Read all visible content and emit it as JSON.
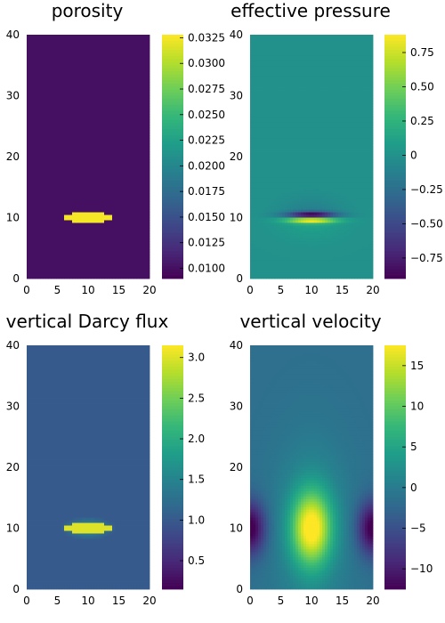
{
  "colors": {
    "viridis": [
      "#440154",
      "#482878",
      "#3e4989",
      "#31688e",
      "#26828e",
      "#1f9e89",
      "#35b779",
      "#6ece58",
      "#b5de2b",
      "#fde725"
    ]
  },
  "chart_data": [
    {
      "type": "heatmap",
      "title": "porosity",
      "xlim": [
        0,
        20
      ],
      "ylim": [
        0,
        40
      ],
      "xticks": [
        "0",
        "5",
        "10",
        "15",
        "20"
      ],
      "yticks": [
        "0",
        "10",
        "20",
        "30",
        "40"
      ],
      "clim": [
        0.009,
        0.0328
      ],
      "cbticks": [
        "0.0100",
        "0.0125",
        "0.0150",
        "0.0175",
        "0.0200",
        "0.0225",
        "0.0250",
        "0.0275",
        "0.0300",
        "0.0325"
      ],
      "field": {
        "background": 0.01,
        "blob": {
          "cx": 10,
          "cy": 10,
          "rx": 4.2,
          "ry": 0.8,
          "value": 0.0325
        }
      }
    },
    {
      "type": "heatmap",
      "title": "effective pressure",
      "xlim": [
        0,
        20
      ],
      "ylim": [
        0,
        40
      ],
      "xticks": [
        "0",
        "5",
        "10",
        "15",
        "20"
      ],
      "yticks": [
        "0",
        "10",
        "20",
        "30",
        "40"
      ],
      "clim": [
        -0.9,
        0.88
      ],
      "cbticks": [
        "0.75",
        "0.50",
        "0.25",
        "0",
        "−0.25",
        "−0.50",
        "−0.75"
      ],
      "field": {
        "background": 0.0,
        "dipole": {
          "cx": 10,
          "cy": 10,
          "min": -0.85,
          "max": 0.85
        }
      }
    },
    {
      "type": "heatmap",
      "title": "vertical Darcy flux",
      "xlim": [
        0,
        20
      ],
      "ylim": [
        0,
        40
      ],
      "xticks": [
        "0",
        "5",
        "10",
        "15",
        "20"
      ],
      "yticks": [
        "0",
        "10",
        "20",
        "30",
        "40"
      ],
      "clim": [
        0.15,
        3.15
      ],
      "cbticks": [
        "0.5",
        "1.0",
        "1.5",
        "2.0",
        "2.5",
        "3.0"
      ],
      "field": {
        "background": 1.0,
        "blob": {
          "cx": 10,
          "cy": 10,
          "rx": 4.2,
          "ry": 0.8,
          "value": 3.0
        }
      }
    },
    {
      "type": "heatmap",
      "title": "vertical velocity",
      "xlim": [
        0,
        20
      ],
      "ylim": [
        0,
        40
      ],
      "xticks": [
        "0",
        "5",
        "10",
        "15",
        "20"
      ],
      "yticks": [
        "0",
        "10",
        "20",
        "30",
        "40"
      ],
      "clim": [
        -12.5,
        17.5
      ],
      "cbticks": [
        "15",
        "10",
        "5",
        "0",
        "−5",
        "−10"
      ],
      "field": {
        "background": 0.0,
        "center_max": 17.0,
        "side_min": -12.0
      }
    }
  ]
}
